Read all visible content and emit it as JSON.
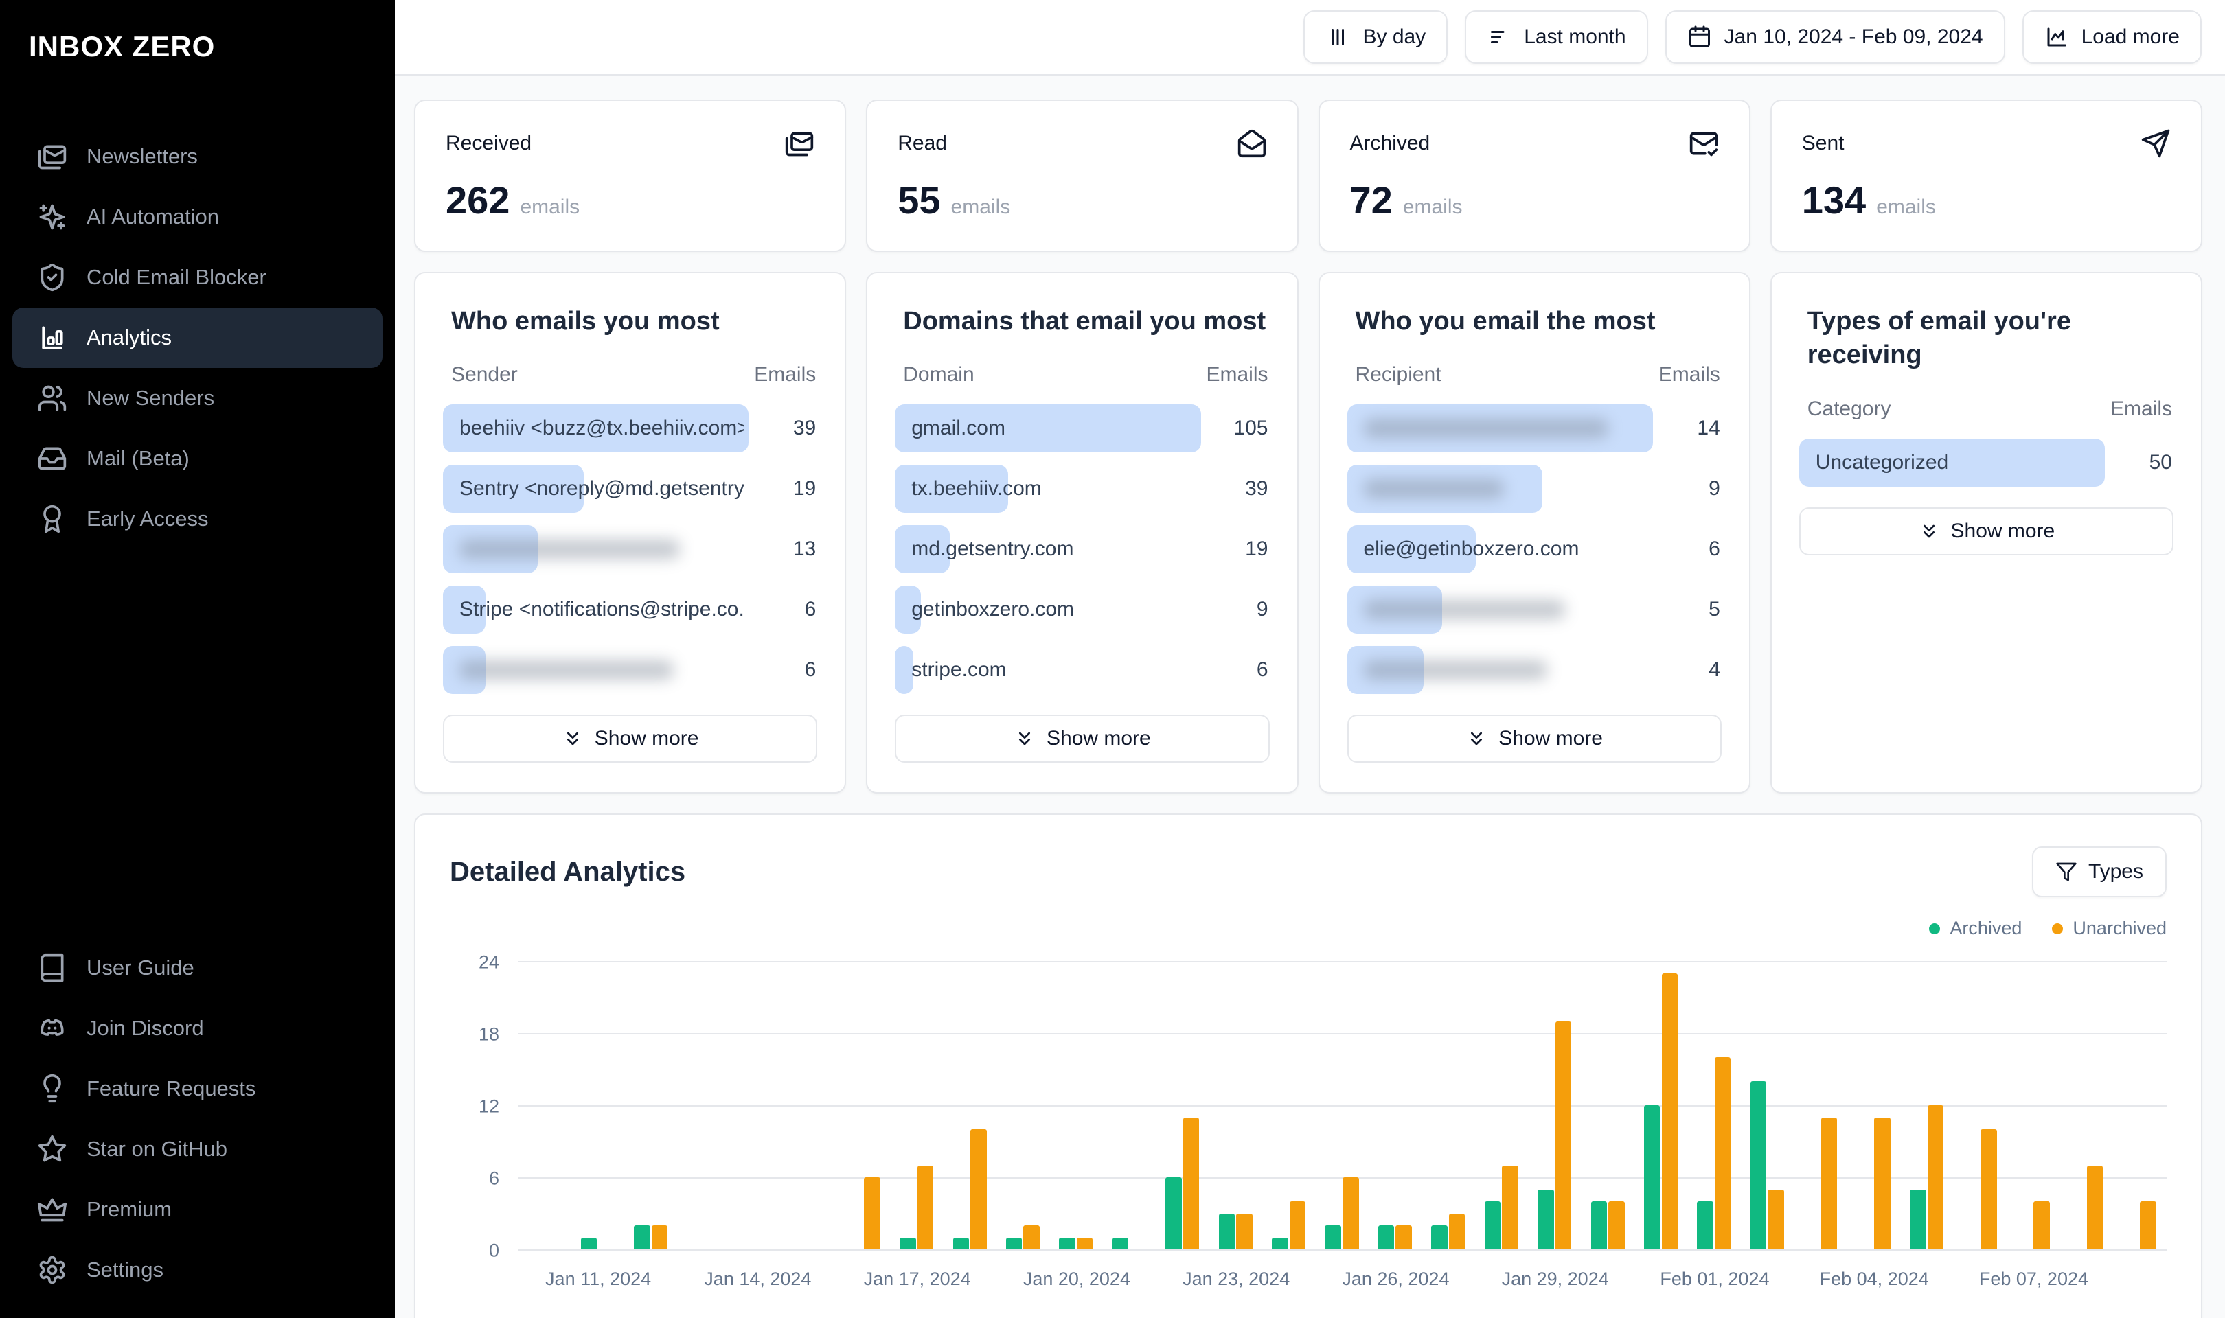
{
  "app": {
    "name": "INBOX ZERO"
  },
  "sidebar": {
    "items": [
      {
        "label": "Newsletters",
        "icon": "newsletters-mail",
        "active": false
      },
      {
        "label": "AI Automation",
        "icon": "sparkles",
        "active": false
      },
      {
        "label": "Cold Email Blocker",
        "icon": "shield-check",
        "active": false
      },
      {
        "label": "Analytics",
        "icon": "bar-chart",
        "active": true
      },
      {
        "label": "New Senders",
        "icon": "users",
        "active": false
      },
      {
        "label": "Mail (Beta)",
        "icon": "inbox",
        "active": false
      },
      {
        "label": "Early Access",
        "icon": "award-ribbon",
        "active": false
      }
    ],
    "footer_items": [
      {
        "label": "User Guide",
        "icon": "book",
        "active": false
      },
      {
        "label": "Join Discord",
        "icon": "discord",
        "active": false
      },
      {
        "label": "Feature Requests",
        "icon": "lightbulb",
        "active": false
      },
      {
        "label": "Star on GitHub",
        "icon": "star",
        "active": false
      },
      {
        "label": "Premium",
        "icon": "crown",
        "active": false
      },
      {
        "label": "Settings",
        "icon": "gear",
        "active": false
      }
    ]
  },
  "topbar": {
    "buttons": [
      {
        "label": "By day",
        "icon": "columns"
      },
      {
        "label": "Last month",
        "icon": "filter-lines"
      },
      {
        "label": "Jan 10, 2024 - Feb 09, 2024",
        "icon": "calendar"
      },
      {
        "label": "Load more",
        "icon": "chart-load"
      }
    ]
  },
  "stats": [
    {
      "label": "Received",
      "value": "262",
      "unit": "emails",
      "icon": "mails"
    },
    {
      "label": "Read",
      "value": "55",
      "unit": "emails",
      "icon": "mail-open"
    },
    {
      "label": "Archived",
      "value": "72",
      "unit": "emails",
      "icon": "mail-check"
    },
    {
      "label": "Sent",
      "value": "134",
      "unit": "emails",
      "icon": "send"
    }
  ],
  "panels": [
    {
      "title": "Who emails you most",
      "col1": "Sender",
      "col2": "Emails",
      "show_more": "Show more",
      "rows": [
        {
          "label": "beehiiv <buzz@tx.beehiiv.com>",
          "value": 39,
          "bar_pct": 100,
          "blurred": false
        },
        {
          "label": "Sentry <noreply@md.getsentry....",
          "value": 19,
          "bar_pct": 46,
          "blurred": false
        },
        {
          "label": null,
          "value": 13,
          "bar_pct": 31,
          "blurred": true,
          "smudge_pct": 72
        },
        {
          "label": "Stripe <notifications@stripe.co...",
          "value": 6,
          "bar_pct": 14,
          "blurred": false
        },
        {
          "label": null,
          "value": 6,
          "bar_pct": 14,
          "blurred": true,
          "smudge_pct": 70
        }
      ]
    },
    {
      "title": "Domains that email you most",
      "col1": "Domain",
      "col2": "Emails",
      "show_more": "Show more",
      "rows": [
        {
          "label": "gmail.com",
          "value": 105,
          "bar_pct": 100,
          "blurred": false
        },
        {
          "label": "tx.beehiiv.com",
          "value": 39,
          "bar_pct": 37,
          "blurred": false
        },
        {
          "label": "md.getsentry.com",
          "value": 19,
          "bar_pct": 18,
          "blurred": false
        },
        {
          "label": "getinboxzero.com",
          "value": 9,
          "bar_pct": 8.5,
          "blurred": false
        },
        {
          "label": "stripe.com",
          "value": 6,
          "bar_pct": 6,
          "blurred": false
        }
      ]
    },
    {
      "title": "Who you email the most",
      "col1": "Recipient",
      "col2": "Emails",
      "show_more": "Show more",
      "rows": [
        {
          "label": null,
          "value": 14,
          "bar_pct": 100,
          "blurred": true,
          "smudge_pct": 80
        },
        {
          "label": null,
          "value": 9,
          "bar_pct": 64,
          "blurred": true,
          "smudge_pct": 46
        },
        {
          "label": "elie@getinboxzero.com",
          "value": 6,
          "bar_pct": 42,
          "blurred": false
        },
        {
          "label": null,
          "value": 5,
          "bar_pct": 31,
          "blurred": true,
          "smudge_pct": 66
        },
        {
          "label": null,
          "value": 4,
          "bar_pct": 25,
          "blurred": true,
          "smudge_pct": 60
        }
      ]
    },
    {
      "title": "Types of email you're receiving",
      "col1": "Category",
      "col2": "Emails",
      "show_more": "Show more",
      "rows": [
        {
          "label": "Uncategorized",
          "value": 50,
          "bar_pct": 100,
          "blurred": false
        }
      ]
    }
  ],
  "detailed": {
    "title": "Detailed Analytics",
    "types_button": "Types"
  },
  "chart_data": {
    "type": "bar",
    "title": "Detailed Analytics",
    "categories": [
      "Jan 10, 2024",
      "Jan 11, 2024",
      "Jan 12, 2024",
      "Jan 13, 2024",
      "Jan 14, 2024",
      "Jan 15, 2024",
      "Jan 16, 2024",
      "Jan 17, 2024",
      "Jan 18, 2024",
      "Jan 19, 2024",
      "Jan 20, 2024",
      "Jan 21, 2024",
      "Jan 22, 2024",
      "Jan 23, 2024",
      "Jan 24, 2024",
      "Jan 25, 2024",
      "Jan 26, 2024",
      "Jan 27, 2024",
      "Jan 28, 2024",
      "Jan 29, 2024",
      "Jan 30, 2024",
      "Jan 31, 2024",
      "Feb 01, 2024",
      "Feb 02, 2024",
      "Feb 03, 2024",
      "Feb 04, 2024",
      "Feb 05, 2024",
      "Feb 06, 2024",
      "Feb 07, 2024",
      "Feb 08, 2024",
      "Feb 09, 2024"
    ],
    "series": [
      {
        "name": "Archived",
        "color": "#10b981",
        "values": [
          0,
          1,
          2,
          0,
          0,
          0,
          0,
          1,
          1,
          1,
          1,
          1,
          6,
          3,
          1,
          2,
          2,
          2,
          4,
          5,
          4,
          12,
          4,
          14,
          0,
          0,
          5,
          0,
          0,
          0,
          0
        ]
      },
      {
        "name": "Unarchived",
        "color": "#f59e0b",
        "values": [
          0,
          0,
          2,
          0,
          0,
          0,
          6,
          7,
          10,
          2,
          1,
          0,
          11,
          3,
          4,
          6,
          2,
          3,
          7,
          19,
          4,
          23,
          16,
          5,
          11,
          11,
          12,
          10,
          4,
          7,
          4
        ]
      }
    ],
    "ylim": [
      0,
      24
    ],
    "yticks": [
      0,
      6,
      12,
      18,
      24
    ],
    "xticks": [
      {
        "index": 1,
        "label": "Jan 11, 2024"
      },
      {
        "index": 4,
        "label": "Jan 14, 2024"
      },
      {
        "index": 7,
        "label": "Jan 17, 2024"
      },
      {
        "index": 10,
        "label": "Jan 20, 2024"
      },
      {
        "index": 13,
        "label": "Jan 23, 2024"
      },
      {
        "index": 16,
        "label": "Jan 26, 2024"
      },
      {
        "index": 19,
        "label": "Jan 29, 2024"
      },
      {
        "index": 22,
        "label": "Feb 01, 2024"
      },
      {
        "index": 25,
        "label": "Feb 04, 2024"
      },
      {
        "index": 28,
        "label": "Feb 07, 2024"
      }
    ],
    "grid": true,
    "legend_position": "top-right"
  }
}
